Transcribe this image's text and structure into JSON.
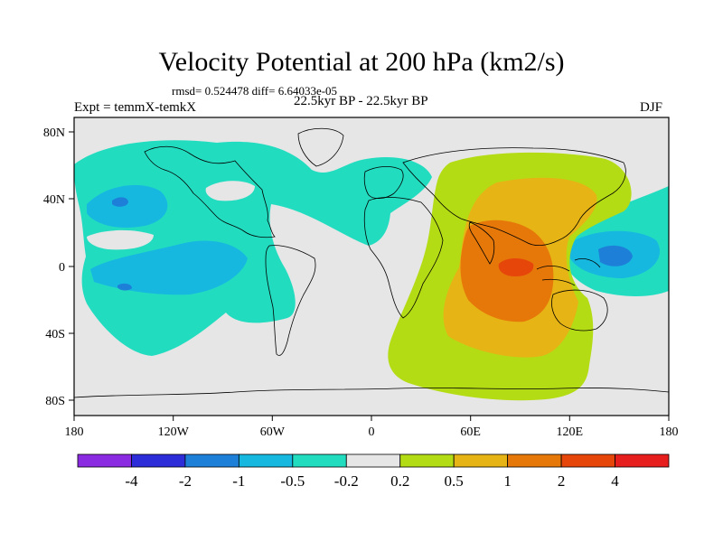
{
  "title": "Velocity Potential at 200 hPa (km2/s)",
  "stats": "rmsd= 0.524478 diff= 6.64033e-05",
  "experiment": "Expt = temmX-temkX",
  "period": "22.5kyr BP - 22.5kyr BP",
  "season": "DJF",
  "map": {
    "lon_range": [
      -180,
      180
    ],
    "lat_range": [
      -90,
      90
    ],
    "lon_ticks": [
      "180",
      "120W",
      "60W",
      "0",
      "60E",
      "120E",
      "180"
    ],
    "lat_ticks": [
      "80N",
      "40N",
      "0",
      "40S",
      "80S"
    ],
    "background_color": "#e6e6e6"
  },
  "colorbar": {
    "labels": [
      "-4",
      "-2",
      "-1",
      "-0.5",
      "-0.2",
      "0.2",
      "0.5",
      "1",
      "2",
      "4"
    ],
    "colors": [
      "#8a2be2",
      "#2c2cd8",
      "#1e7fd8",
      "#16b8e0",
      "#22dcc0",
      "#e6e6e6",
      "#b4dc14",
      "#e6b414",
      "#e6780a",
      "#e6460a",
      "#e61e1e"
    ]
  }
}
